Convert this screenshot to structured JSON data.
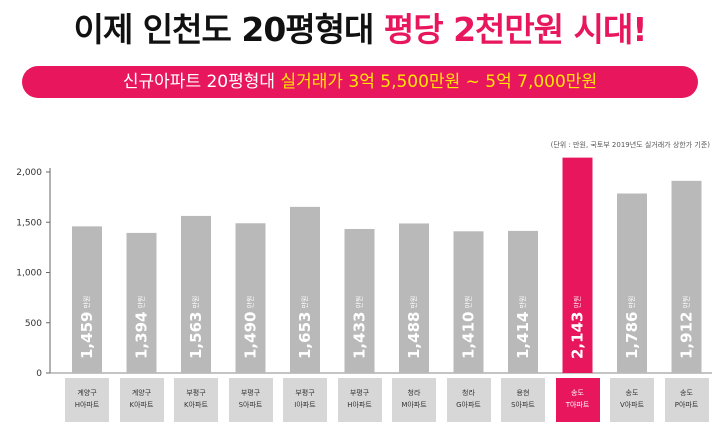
{
  "header": {
    "title_main": "이제 인천도 20평형대 ",
    "title_highlight": "평당 2천만원 시대!",
    "subtitle_main": "신규아파트 20평형대 ",
    "subtitle_highlight": "실거래가 3억 5,500만원 ~ 5억 7,000만원"
  },
  "unit_note": "(단위 : 만원, 국토부 2019년도 실거래가 상한가 기준)",
  "colors": {
    "accent": "#e8175d",
    "bar": "#b9b9b9",
    "label_bg": "#d7d7d7",
    "banner_highlight": "#ffe600"
  },
  "chart_data": {
    "type": "bar",
    "categories": [
      [
        "계양구",
        "H아파트"
      ],
      [
        "계양구",
        "K아파트"
      ],
      [
        "부평구",
        "K아파트"
      ],
      [
        "부평구",
        "S아파트"
      ],
      [
        "부평구",
        "I아파트"
      ],
      [
        "부평구",
        "H아파트"
      ],
      [
        "청라",
        "M아파트"
      ],
      [
        "청라",
        "G아파트"
      ],
      [
        "용현",
        "S아파트"
      ],
      [
        "송도",
        "T아파트"
      ],
      [
        "송도",
        "V아파트"
      ],
      [
        "송도",
        "P아파트"
      ]
    ],
    "values": [
      1459,
      1394,
      1563,
      1490,
      1653,
      1433,
      1488,
      1410,
      1414,
      2143,
      1786,
      1912
    ],
    "value_labels": [
      "1,459",
      "1,394",
      "1,563",
      "1,490",
      "1,653",
      "1,433",
      "1,488",
      "1,410",
      "1,414",
      "2,143",
      "1,786",
      "1,912"
    ],
    "value_unit": "만원",
    "highlight_index": 9,
    "yticks": [
      0,
      500,
      1000,
      1500,
      2000
    ],
    "ytick_labels": [
      "0",
      "500",
      "1,000",
      "1,500",
      "2,000"
    ],
    "ylim": [
      0,
      2000
    ],
    "grid": false,
    "legend": "none"
  }
}
